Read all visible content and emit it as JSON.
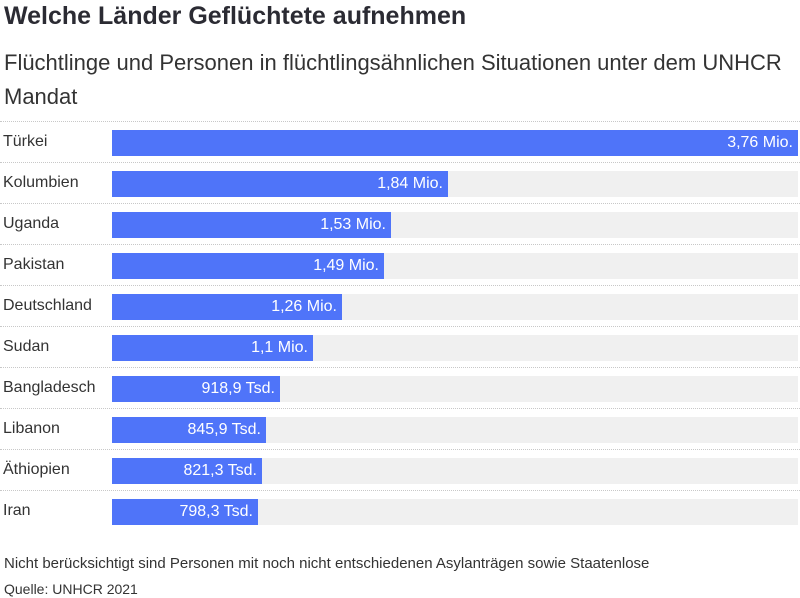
{
  "header": {
    "title": "Welche Länder Geflüchtete aufnehmen",
    "subtitle": "Flüchtlinge und Personen in flüchtlingsähnlichen Situationen unter dem UNHCR Mandat"
  },
  "colors": {
    "bar": "#4f74f9",
    "track": "#f0f0f0",
    "value_text": "#ffffff"
  },
  "chart_data": {
    "type": "bar",
    "orientation": "horizontal",
    "unit": "Personen",
    "categories": [
      "Türkei",
      "Kolumbien",
      "Uganda",
      "Pakistan",
      "Deutschland",
      "Sudan",
      "Bangladesch",
      "Libanon",
      "Äthiopien",
      "Iran"
    ],
    "values": [
      3760000,
      1840000,
      1530000,
      1490000,
      1260000,
      1100000,
      918900,
      845900,
      821300,
      798300
    ],
    "labels": [
      "3,76 Mio.",
      "1,84 Mio.",
      "1,53 Mio.",
      "1,49 Mio.",
      "1,26 Mio.",
      "1,1 Mio.",
      "918,9 Tsd.",
      "845,9 Tsd.",
      "821,3 Tsd.",
      "798,3 Tsd."
    ],
    "xlim": [
      0,
      3760000
    ],
    "grid": false,
    "legend": "none"
  },
  "footer": {
    "note": "Nicht berücksichtigt sind Personen mit noch nicht entschiedenen Asylanträgen sowie Staatenlose",
    "source": "Quelle: UNHCR 2021"
  }
}
